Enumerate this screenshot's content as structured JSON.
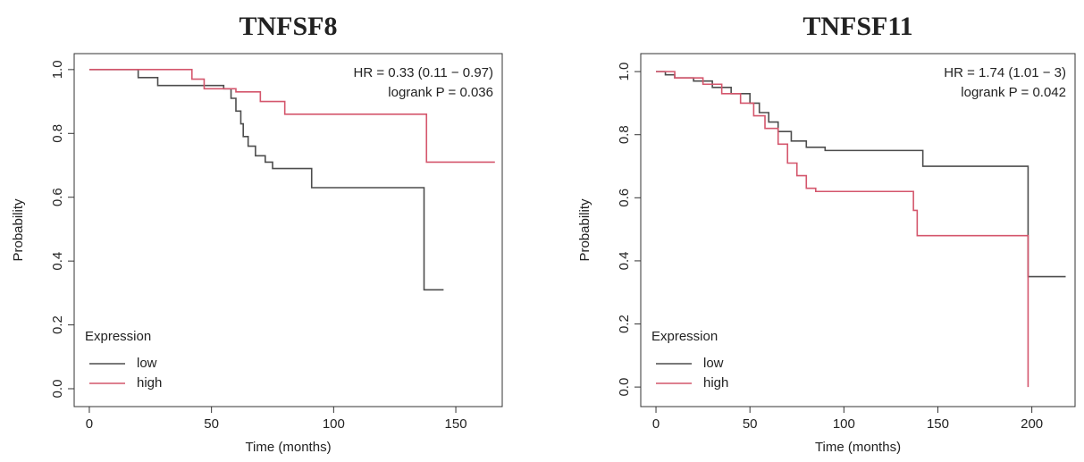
{
  "chart_data": [
    {
      "type": "line",
      "step": true,
      "title": "TNFSF8",
      "xlabel": "Time (months)",
      "ylabel": "Probability",
      "annotations": [
        "HR = 0.33 (0.11 − 0.97)",
        "logrank P = 0.036"
      ],
      "legend_title": "Expression",
      "legend": "bottom-left",
      "xlim": [
        -6.2,
        169
      ],
      "xticks": [
        0,
        50,
        100,
        150
      ],
      "ylim": [
        -0.056,
        1.05
      ],
      "yticks": [
        {
          "value": 0,
          "label": "0.0"
        },
        0.2,
        0.4,
        0.6,
        0.8,
        {
          "value": 1,
          "label": "1.0"
        }
      ],
      "series": [
        {
          "name": "low",
          "color": "#4d4d4d",
          "x": [
            0,
            20,
            28,
            55,
            58,
            60,
            62,
            63,
            65,
            68,
            72,
            75,
            91,
            137,
            145
          ],
          "values": [
            1.0,
            0.975,
            0.95,
            0.94,
            0.91,
            0.87,
            0.83,
            0.79,
            0.76,
            0.73,
            0.71,
            0.69,
            0.63,
            0.31,
            0.31
          ]
        },
        {
          "name": "high",
          "color": "#d4566c",
          "x": [
            0,
            42,
            47,
            60,
            70,
            80,
            138,
            166
          ],
          "values": [
            1.0,
            0.97,
            0.94,
            0.93,
            0.9,
            0.86,
            0.71,
            0.71
          ]
        }
      ]
    },
    {
      "type": "line",
      "step": true,
      "title": "TNFSF11",
      "xlabel": "Time (months)",
      "ylabel": "Probability",
      "annotations": [
        "HR = 1.74 (1.01 − 3)",
        "logrank P = 0.042"
      ],
      "legend_title": "Expression",
      "legend": "bottom-left",
      "xlim": [
        -8.1,
        223
      ],
      "xticks": [
        0,
        50,
        100,
        150,
        200
      ],
      "ylim": [
        -0.062,
        1.057
      ],
      "yticks": [
        {
          "value": 0,
          "label": "0.0"
        },
        0.2,
        0.4,
        0.6,
        0.8,
        {
          "value": 1,
          "label": "1.0"
        }
      ],
      "series": [
        {
          "name": "low",
          "color": "#4d4d4d",
          "x": [
            0,
            5,
            10,
            20,
            30,
            40,
            50,
            55,
            60,
            65,
            72,
            80,
            90,
            142,
            198,
            218
          ],
          "values": [
            1.0,
            0.99,
            0.98,
            0.97,
            0.95,
            0.93,
            0.9,
            0.87,
            0.84,
            0.81,
            0.78,
            0.76,
            0.75,
            0.7,
            0.35,
            0.35
          ]
        },
        {
          "name": "high",
          "color": "#d4566c",
          "x": [
            0,
            10,
            25,
            35,
            45,
            52,
            58,
            65,
            70,
            75,
            80,
            85,
            137,
            139,
            198
          ],
          "values": [
            1.0,
            0.98,
            0.96,
            0.93,
            0.9,
            0.86,
            0.82,
            0.77,
            0.71,
            0.67,
            0.63,
            0.62,
            0.56,
            0.48,
            0.0
          ]
        }
      ]
    }
  ]
}
